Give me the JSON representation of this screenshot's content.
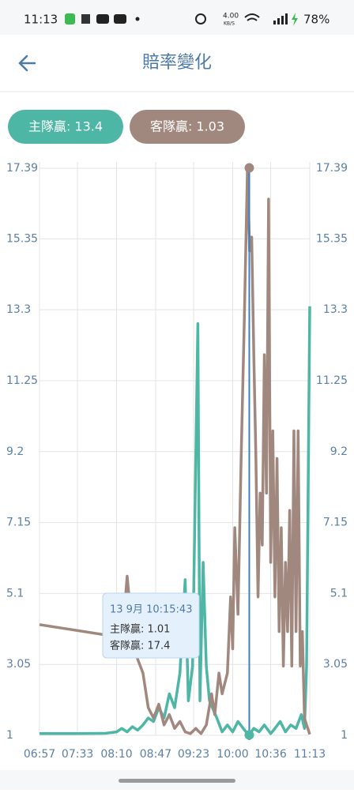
{
  "status_bar": {
    "time": "11:13",
    "speed": "4.00",
    "speed_unit": "KB/S",
    "battery": "78%"
  },
  "header": {
    "title": "賠率變化"
  },
  "buttons": [
    {
      "label": "主隊贏: 13.4",
      "color": "#4db6a5"
    },
    {
      "label": "客隊贏: 1.03",
      "color": "#a1887f"
    }
  ],
  "chart_data": {
    "type": "line",
    "xlim": [
      "06:57",
      "11:13"
    ],
    "xticks": [
      "06:57",
      "07:33",
      "08:10",
      "08:47",
      "09:23",
      "10:00",
      "10:36",
      "11:13"
    ],
    "ylim": [
      1,
      17.39
    ],
    "yticks": [
      1,
      3.05,
      5.1,
      7.15,
      9.2,
      11.25,
      13.3,
      15.35,
      17.39
    ],
    "grid": true,
    "series": [
      {
        "color": "#4db6a5",
        "x": [
          "06:57",
          "07:30",
          "08:00",
          "08:10",
          "08:15",
          "08:20",
          "08:25",
          "08:30",
          "08:35",
          "08:40",
          "08:45",
          "08:50",
          "08:55",
          "09:00",
          "09:05",
          "09:10",
          "09:15",
          "09:18",
          "09:22",
          "09:27",
          "09:29",
          "09:32",
          "09:35",
          "09:38",
          "09:45",
          "09:50",
          "09:55",
          "10:00",
          "10:05",
          "10:10",
          "10:15",
          "10:20",
          "10:25",
          "10:30",
          "10:36",
          "10:40",
          "10:45",
          "10:50",
          "10:55",
          "11:00",
          "11:05",
          "11:08",
          "11:10",
          "11:13"
        ],
        "values": [
          1.05,
          1.05,
          1.06,
          1.1,
          1.2,
          1.1,
          1.25,
          1.15,
          1.3,
          1.5,
          1.4,
          1.8,
          1.5,
          2.2,
          1.8,
          2.8,
          5.5,
          2.0,
          3.0,
          12.9,
          2.0,
          6.0,
          3.0,
          2.0,
          1.5,
          1.1,
          1.3,
          1.1,
          1.4,
          1.2,
          1.01,
          1.2,
          1.1,
          1.3,
          1.05,
          1.2,
          1.4,
          1.1,
          1.3,
          1.2,
          1.6,
          1.2,
          3.0,
          13.4
        ]
      },
      {
        "color": "#a1887f",
        "x": [
          "06:57",
          "08:00",
          "08:07",
          "08:10",
          "08:15",
          "08:20",
          "08:25",
          "08:30",
          "08:35",
          "08:40",
          "08:45",
          "08:50",
          "08:55",
          "09:00",
          "09:05",
          "09:10",
          "09:15",
          "09:20",
          "09:25",
          "09:30",
          "09:35",
          "09:40",
          "09:43",
          "09:47",
          "09:50",
          "09:55",
          "09:58",
          "10:00",
          "10:02",
          "10:05",
          "10:08",
          "10:11",
          "10:14",
          "10:16",
          "10:18",
          "10:20",
          "10:22",
          "10:24",
          "10:26",
          "10:28",
          "10:30",
          "10:32",
          "10:34",
          "10:36",
          "10:38",
          "10:40",
          "10:42",
          "10:44",
          "10:46",
          "10:48",
          "10:50",
          "10:52",
          "10:54",
          "10:56",
          "10:58",
          "11:00",
          "11:02",
          "11:04",
          "11:06",
          "11:08",
          "11:10",
          "11:13"
        ],
        "values": [
          4.2,
          3.9,
          3.7,
          4.3,
          3.6,
          5.6,
          4.0,
          3.2,
          2.8,
          1.8,
          1.5,
          1.9,
          1.3,
          1.6,
          1.2,
          1.4,
          1.1,
          1.05,
          1.2,
          1.05,
          1.3,
          2.2,
          1.6,
          2.8,
          2.2,
          2.8,
          5.0,
          3.5,
          7.0,
          4.5,
          9.0,
          13.0,
          17.4,
          15.0,
          15.4,
          12.0,
          9.0,
          5.0,
          8.0,
          6.5,
          12.0,
          8.0,
          16.5,
          6.0,
          9.8,
          5.0,
          9.0,
          4.0,
          7.0,
          3.0,
          6.0,
          4.0,
          7.5,
          3.0,
          9.8,
          4.0,
          9.8,
          3.0,
          4.0,
          1.5,
          1.3,
          1.03
        ]
      }
    ],
    "tooltip": {
      "title": "13 9月 10:15:43",
      "x": "10:15:43",
      "items": [
        {
          "label": "主隊贏: 1.01",
          "value": 1.01,
          "color": "#4db6a5"
        },
        {
          "label": "客隊贏: 17.4",
          "value": 17.4,
          "color": "#a1887f"
        }
      ]
    }
  }
}
